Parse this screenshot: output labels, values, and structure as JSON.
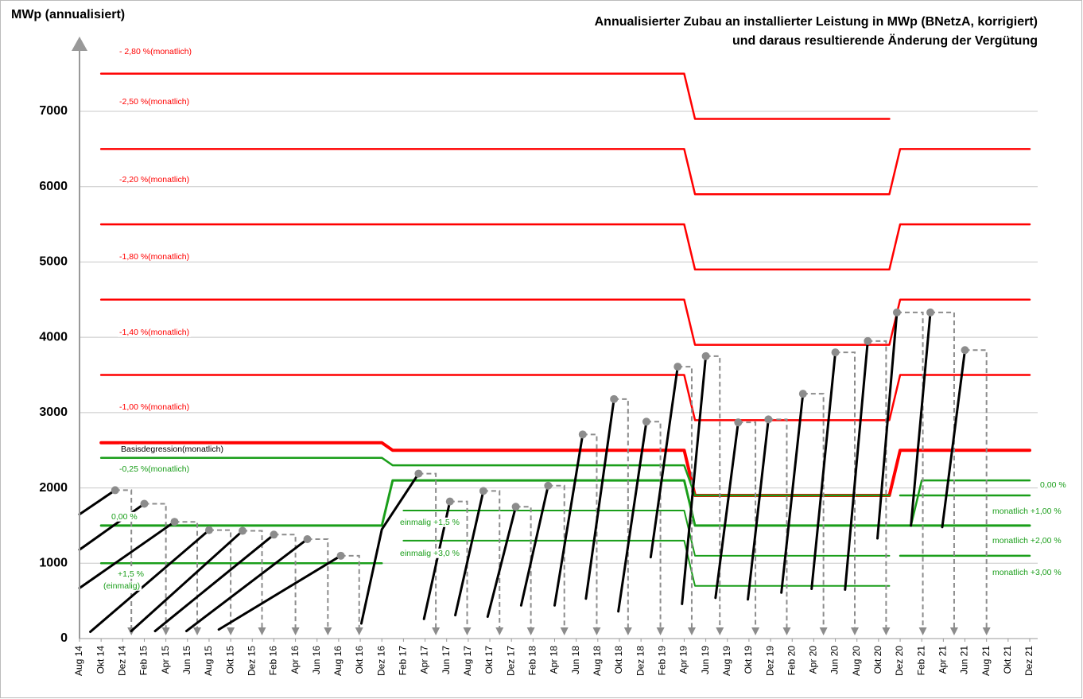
{
  "chart_data": {
    "type": "line",
    "title": [
      "Annualisierter Zubau an installierter Leistung in MWp (BNetzA, korrigiert)",
      "und daraus resultierende Änderung der Vergütung"
    ],
    "y_label": "MWp (annualisiert)",
    "xlim": [
      0,
      88
    ],
    "ylim": [
      0,
      8000
    ],
    "yticks": [
      0,
      1000,
      2000,
      3000,
      4000,
      5000,
      6000,
      7000
    ],
    "grid": true,
    "xticks": [
      {
        "value": 0,
        "label": "Aug 14"
      },
      {
        "value": 2,
        "label": "Okt 14"
      },
      {
        "value": 4,
        "label": "Dez 14"
      },
      {
        "value": 6,
        "label": "Feb 15"
      },
      {
        "value": 8,
        "label": "Apr 15"
      },
      {
        "value": 10,
        "label": "Jun 15"
      },
      {
        "value": 12,
        "label": "Aug 15"
      },
      {
        "value": 14,
        "label": "Okt 15"
      },
      {
        "value": 16,
        "label": "Dez 15"
      },
      {
        "value": 18,
        "label": "Feb 16"
      },
      {
        "value": 20,
        "label": "Apr 16"
      },
      {
        "value": 22,
        "label": "Jun 16"
      },
      {
        "value": 24,
        "label": "Aug 16"
      },
      {
        "value": 26,
        "label": "Okt 16"
      },
      {
        "value": 28,
        "label": "Dez 16"
      },
      {
        "value": 30,
        "label": "Feb 17"
      },
      {
        "value": 32,
        "label": "Apr 17"
      },
      {
        "value": 34,
        "label": "Jun 17"
      },
      {
        "value": 36,
        "label": "Aug 17"
      },
      {
        "value": 38,
        "label": "Okt 17"
      },
      {
        "value": 40,
        "label": "Dez 17"
      },
      {
        "value": 42,
        "label": "Feb 18"
      },
      {
        "value": 44,
        "label": "Apr 18"
      },
      {
        "value": 46,
        "label": "Jun 18"
      },
      {
        "value": 48,
        "label": "Aug 18"
      },
      {
        "value": 50,
        "label": "Okt 18"
      },
      {
        "value": 52,
        "label": "Dez 18"
      },
      {
        "value": 54,
        "label": "Feb 19"
      },
      {
        "value": 56,
        "label": "Apr 19"
      },
      {
        "value": 58,
        "label": "Jun 19"
      },
      {
        "value": 60,
        "label": "Aug 19"
      },
      {
        "value": 62,
        "label": "Okt 19"
      },
      {
        "value": 64,
        "label": "Dez 19"
      },
      {
        "value": 66,
        "label": "Feb 20"
      },
      {
        "value": 68,
        "label": "Apr 20"
      },
      {
        "value": 70,
        "label": "Jun 20"
      },
      {
        "value": 72,
        "label": "Aug 20"
      },
      {
        "value": 74,
        "label": "Okt 20"
      },
      {
        "value": 76,
        "label": "Dez 20"
      },
      {
        "value": 78,
        "label": "Feb 21"
      },
      {
        "value": 80,
        "label": "Apr 21"
      },
      {
        "value": 82,
        "label": "Jun 21"
      },
      {
        "value": 84,
        "label": "Aug 21"
      },
      {
        "value": 86,
        "label": "Okt 21"
      },
      {
        "value": 88,
        "label": "Dez 21"
      }
    ],
    "drop_color": "#8c8c8c",
    "series": [
      {
        "color": "#ff0000",
        "width": 2.5,
        "x": [
          2,
          56,
          57,
          75
        ],
        "values": [
          7500,
          7500,
          6900,
          6900
        ]
      },
      {
        "color": "#ff0000",
        "width": 2.5,
        "x": [
          2,
          56,
          57,
          75,
          76,
          88
        ],
        "values": [
          6500,
          6500,
          5900,
          5900,
          6500,
          6500
        ]
      },
      {
        "color": "#ff0000",
        "width": 2.5,
        "x": [
          2,
          56,
          57,
          75,
          76,
          88
        ],
        "values": [
          5500,
          5500,
          4900,
          4900,
          5500,
          5500
        ]
      },
      {
        "color": "#ff0000",
        "width": 2.5,
        "x": [
          2,
          56,
          57,
          75,
          76,
          88
        ],
        "values": [
          4500,
          4500,
          3900,
          3900,
          4500,
          4500
        ]
      },
      {
        "color": "#ff0000",
        "width": 2.5,
        "x": [
          2,
          56,
          57,
          75,
          76,
          88
        ],
        "values": [
          3500,
          3500,
          2900,
          2900,
          3500,
          3500
        ]
      },
      {
        "color": "#ff0000",
        "width": 4,
        "x": [
          2,
          28,
          29,
          56,
          57,
          75,
          76,
          88
        ],
        "values": [
          2600,
          2600,
          2500,
          2500,
          1900,
          1900,
          2500,
          2500
        ]
      },
      {
        "color": "#1a9e1a",
        "width": 2.5,
        "x": [
          2,
          28,
          29,
          56,
          57,
          75
        ],
        "values": [
          2400,
          2400,
          2300,
          2300,
          1900,
          1900
        ]
      },
      {
        "color": "#1a9e1a",
        "width": 3,
        "x": [
          2,
          28,
          29,
          56,
          57,
          88
        ],
        "values": [
          1500,
          1500,
          2100,
          2100,
          1500,
          1500
        ]
      },
      {
        "color": "#1a9e1a",
        "width": 2,
        "x": [
          30,
          56,
          57,
          75
        ],
        "values": [
          1700,
          1700,
          1100,
          1100
        ]
      },
      {
        "color": "#1a9e1a",
        "width": 2.5,
        "x": [
          2,
          28
        ],
        "values": [
          1000,
          1000
        ]
      },
      {
        "color": "#1a9e1a",
        "width": 2,
        "x": [
          30,
          56,
          57,
          75
        ],
        "values": [
          1300,
          1300,
          700,
          700
        ]
      },
      {
        "color": "#1a9e1a",
        "width": 2.5,
        "x": [
          76,
          88
        ],
        "values": [
          1900,
          1900
        ]
      },
      {
        "color": "#1a9e1a",
        "width": 2.5,
        "x": [
          77,
          78,
          88
        ],
        "values": [
          1500,
          2100,
          2100
        ]
      },
      {
        "color": "#1a9e1a",
        "width": 2.5,
        "x": [
          76,
          88
        ],
        "values": [
          1100,
          1100
        ]
      },
      {
        "color": "#000000",
        "width": 3,
        "x": [
          0,
          3.3
        ],
        "values": [
          1650,
          1970
        ],
        "drop_x": 4.8
      },
      {
        "color": "#000000",
        "width": 3,
        "x": [
          0,
          6
        ],
        "values": [
          1180,
          1790
        ],
        "drop_x": 8
      },
      {
        "color": "#000000",
        "width": 3,
        "x": [
          0,
          8.8
        ],
        "values": [
          670,
          1550
        ],
        "drop_x": 10.9
      },
      {
        "color": "#000000",
        "width": 3,
        "x": [
          1,
          12
        ],
        "values": [
          90,
          1440
        ],
        "drop_x": 14
      },
      {
        "color": "#000000",
        "width": 3,
        "x": [
          4.8,
          15.1
        ],
        "values": [
          100,
          1430
        ],
        "drop_x": 16.9
      },
      {
        "color": "#000000",
        "width": 3,
        "x": [
          7,
          18
        ],
        "values": [
          100,
          1380
        ],
        "drop_x": 20
      },
      {
        "color": "#000000",
        "width": 3,
        "x": [
          9.9,
          21.1
        ],
        "values": [
          100,
          1320
        ],
        "drop_x": 23
      },
      {
        "color": "#000000",
        "width": 3,
        "x": [
          12.9,
          24.2
        ],
        "values": [
          120,
          1100
        ],
        "drop_x": 25.9
      },
      {
        "color": "#000000",
        "width": 3,
        "x": [
          26.1,
          28,
          31.4
        ],
        "values": [
          200,
          1450,
          2190
        ],
        "drop_x": 33
      },
      {
        "color": "#000000",
        "width": 3,
        "x": [
          31.9,
          34.3
        ],
        "values": [
          260,
          1820
        ],
        "drop_x": 35.9
      },
      {
        "color": "#000000",
        "width": 3,
        "x": [
          34.8,
          37.4
        ],
        "values": [
          310,
          1960
        ],
        "drop_x": 38.9
      },
      {
        "color": "#000000",
        "width": 3,
        "x": [
          37.8,
          40.4
        ],
        "values": [
          290,
          1750
        ],
        "drop_x": 41.8
      },
      {
        "color": "#000000",
        "width": 3,
        "x": [
          40.9,
          43.4
        ],
        "values": [
          440,
          2030
        ],
        "drop_x": 44.9
      },
      {
        "color": "#000000",
        "width": 3,
        "x": [
          44,
          46.6
        ],
        "values": [
          440,
          2710
        ],
        "drop_x": 47.9
      },
      {
        "color": "#000000",
        "width": 3,
        "x": [
          46.9,
          49.5
        ],
        "values": [
          530,
          3180
        ],
        "drop_x": 50.8
      },
      {
        "color": "#000000",
        "width": 3,
        "x": [
          49.9,
          52.5
        ],
        "values": [
          360,
          2880
        ],
        "drop_x": 53.8
      },
      {
        "color": "#000000",
        "width": 3,
        "x": [
          52.9,
          55.4
        ],
        "values": [
          1080,
          3610
        ],
        "drop_x": 56.7
      },
      {
        "color": "#000000",
        "width": 3,
        "x": [
          55.8,
          58
        ],
        "values": [
          460,
          3750
        ],
        "drop_x": 59.3
      },
      {
        "color": "#000000",
        "width": 3,
        "x": [
          58.9,
          61
        ],
        "values": [
          540,
          2870
        ],
        "drop_x": 62.6
      },
      {
        "color": "#000000",
        "width": 3,
        "x": [
          61.9,
          63.8
        ],
        "values": [
          520,
          2910
        ],
        "drop_x": 65.5
      },
      {
        "color": "#000000",
        "width": 3,
        "x": [
          65,
          67
        ],
        "values": [
          610,
          3250
        ],
        "drop_x": 68.9
      },
      {
        "color": "#000000",
        "width": 3,
        "x": [
          67.8,
          70
        ],
        "values": [
          660,
          3800
        ],
        "drop_x": 71.8
      },
      {
        "color": "#000000",
        "width": 3,
        "x": [
          70.9,
          73
        ],
        "values": [
          650,
          3950
        ],
        "drop_x": 74.7
      },
      {
        "color": "#000000",
        "width": 3,
        "x": [
          73.9,
          75.7
        ],
        "values": [
          1330,
          4330
        ],
        "drop_x": 78.1
      },
      {
        "color": "#000000",
        "width": 3,
        "x": [
          77,
          78.8
        ],
        "values": [
          1500,
          4330
        ],
        "drop_x": 81
      },
      {
        "color": "#000000",
        "width": 3,
        "x": [
          79.9,
          82
        ],
        "values": [
          1480,
          3830
        ],
        "drop_x": 84
      }
    ],
    "annotations": [
      {
        "text": "- 2,80 %(monatlich)",
        "color": "#ff0000"
      },
      {
        "text": "-2,50  %(monatlich)",
        "color": "#ff0000"
      },
      {
        "text": "-2,20  %(monatlich)",
        "color": "#ff0000"
      },
      {
        "text": "-1,80  %(monatlich)",
        "color": "#ff0000"
      },
      {
        "text": "-1,40  %(monatlich)",
        "color": "#ff0000"
      },
      {
        "text": "-1,00  %(monatlich)",
        "color": "#ff0000"
      },
      {
        "text": "Basisdegression(monatlich)",
        "color": "#000000"
      },
      {
        "text": "-0,25  %(monatlich)",
        "color": "#1a9e1a"
      },
      {
        "text": "0,00 %",
        "color": "#1a9e1a"
      },
      {
        "text": "+1,5 %",
        "color": "#1a9e1a"
      },
      {
        "text": "(einmalig)",
        "color": "#1a9e1a"
      },
      {
        "text": "einmalig +1,5 %",
        "color": "#1a9e1a"
      },
      {
        "text": "einmalig +3,0 %",
        "color": "#1a9e1a"
      },
      {
        "text": "0,00 %",
        "color": "#1a9e1a"
      },
      {
        "text": "monatlich +1,00 %",
        "color": "#1a9e1a"
      },
      {
        "text": "monatlich +2,00 %",
        "color": "#1a9e1a"
      },
      {
        "text": "monatlich +3,00 %",
        "color": "#1a9e1a"
      }
    ]
  }
}
